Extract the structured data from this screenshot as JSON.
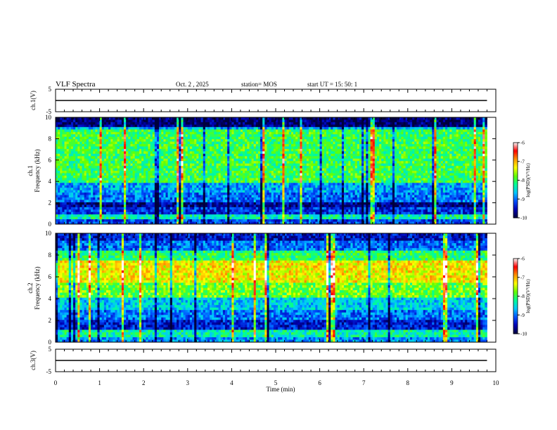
{
  "header": {
    "title": "VLF Spectra",
    "date": "Oct. 2 , 2025",
    "station": "station= MOS",
    "start_ut": "start UT =  15: 50: 1"
  },
  "colors": {
    "spectrogram_ramp": [
      "#00003c",
      "#0000b4",
      "#0050ff",
      "#00c8ff",
      "#00ff96",
      "#64ff00",
      "#ffff00",
      "#ff9600",
      "#ff0000",
      "#ffffff"
    ]
  },
  "chart_data": [
    {
      "id": "ch1_waveform",
      "type": "line",
      "ylabel": "ch.1(V)",
      "ylim": [
        -5,
        5
      ],
      "yticks": [
        "5",
        "-5"
      ],
      "baseline": 0,
      "description_value": 0
    },
    {
      "id": "ch1_spectrogram",
      "type": "heatmap",
      "ylabel_line1": "ch.1",
      "ylabel_line2": "Frequency (kHz)",
      "ylim": [
        0,
        10
      ],
      "yticks": [
        "0",
        "2",
        "4",
        "6",
        "8",
        "10"
      ],
      "colorbar": {
        "label": "log(PSD)(V²/Hz)",
        "range": [
          -10,
          -6
        ],
        "ticks": [
          "-6",
          "-7",
          "-8",
          "-9",
          "-10"
        ]
      },
      "bands": [
        {
          "from": 0.0,
          "to": 0.4,
          "level": 0.2
        },
        {
          "from": 0.4,
          "to": 1.0,
          "level": 0.42
        },
        {
          "from": 1.0,
          "to": 1.6,
          "level": 0.18
        },
        {
          "from": 1.6,
          "to": 2.0,
          "level": 0.08
        },
        {
          "from": 2.0,
          "to": 3.0,
          "level": 0.25
        },
        {
          "from": 3.0,
          "to": 3.8,
          "level": 0.3
        },
        {
          "from": 3.8,
          "to": 8.8,
          "level": 0.5
        },
        {
          "from": 8.8,
          "to": 9.2,
          "level": 0.32
        },
        {
          "from": 9.2,
          "to": 10.0,
          "level": 0.05
        }
      ]
    },
    {
      "id": "ch2_spectrogram",
      "type": "heatmap",
      "ylabel_line1": "ch.2",
      "ylabel_line2": "Frequency (kHz)",
      "ylim": [
        0,
        10
      ],
      "yticks": [
        "0",
        "2",
        "4",
        "6",
        "8",
        "10"
      ],
      "colorbar": {
        "label": "log(PSD)(V²/Hz)",
        "range": [
          -10,
          -6
        ],
        "ticks": [
          "-6",
          "-7",
          "-8",
          "-9",
          "-10"
        ]
      },
      "bands": [
        {
          "from": 0.0,
          "to": 0.4,
          "level": 0.28
        },
        {
          "from": 0.4,
          "to": 1.2,
          "level": 0.42
        },
        {
          "from": 1.2,
          "to": 2.0,
          "level": 0.15
        },
        {
          "from": 2.0,
          "to": 3.0,
          "level": 0.25
        },
        {
          "from": 3.0,
          "to": 4.0,
          "level": 0.35
        },
        {
          "from": 4.0,
          "to": 5.5,
          "level": 0.55
        },
        {
          "from": 5.5,
          "to": 7.5,
          "level": 0.68
        },
        {
          "from": 7.5,
          "to": 8.5,
          "level": 0.48
        },
        {
          "from": 8.5,
          "to": 9.3,
          "level": 0.25
        },
        {
          "from": 9.3,
          "to": 10.0,
          "level": 0.14
        }
      ]
    },
    {
      "id": "ch3_waveform",
      "type": "line",
      "ylabel": "ch.3(V)",
      "ylim": [
        -5,
        5
      ],
      "yticks": [
        "5",
        "-5"
      ],
      "baseline": 0
    },
    {
      "id": "time_axis",
      "type": "axis",
      "xlabel": "Time (min)",
      "xlim": [
        0,
        10
      ],
      "xticks": [
        "0",
        "1",
        "2",
        "3",
        "4",
        "5",
        "6",
        "7",
        "8",
        "9",
        "10"
      ],
      "data_end_min": 9.8
    }
  ]
}
